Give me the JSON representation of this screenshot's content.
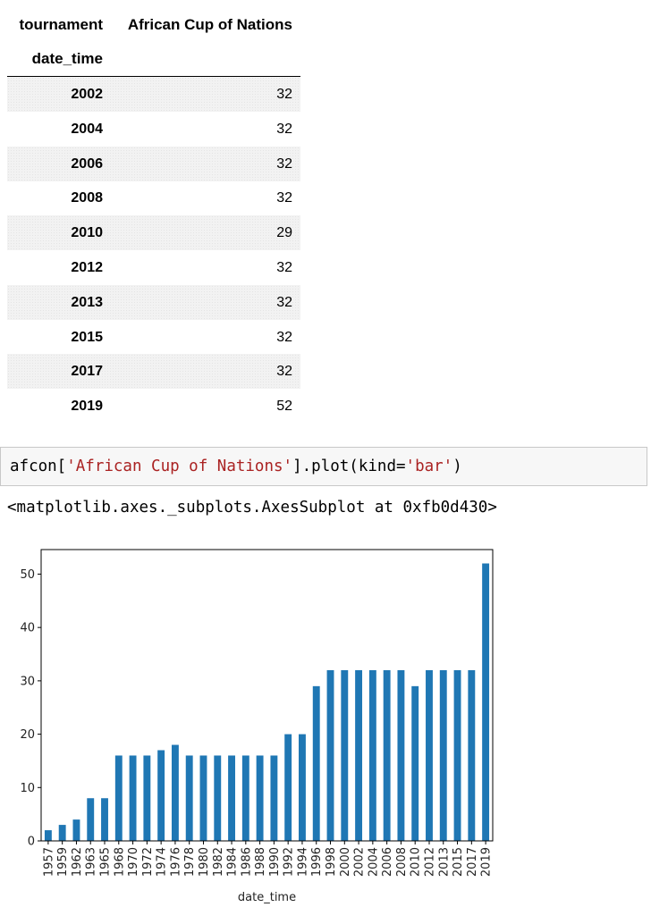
{
  "dataframe": {
    "column_header_label": "tournament",
    "column_name": "African Cup of Nations",
    "index_name": "date_time",
    "rows": [
      {
        "index": "2002",
        "value": "32"
      },
      {
        "index": "2004",
        "value": "32"
      },
      {
        "index": "2006",
        "value": "32"
      },
      {
        "index": "2008",
        "value": "32"
      },
      {
        "index": "2010",
        "value": "29"
      },
      {
        "index": "2012",
        "value": "32"
      },
      {
        "index": "2013",
        "value": "32"
      },
      {
        "index": "2015",
        "value": "32"
      },
      {
        "index": "2017",
        "value": "32"
      },
      {
        "index": "2019",
        "value": "52"
      }
    ]
  },
  "code_cell": {
    "prefix": "afcon[",
    "string_arg": "'African Cup of Nations'",
    "middle": "].plot(kind=",
    "string_kind": "'bar'",
    "suffix": ")"
  },
  "output_text": "<matplotlib.axes._subplots.AxesSubplot at 0xfb0d430>",
  "chart_data": {
    "type": "bar",
    "xlabel": "date_time",
    "ylabel": "",
    "title": "",
    "ylim": [
      0,
      54.6
    ],
    "yticks": [
      0,
      10,
      20,
      30,
      40,
      50
    ],
    "bar_color": "#1f77b4",
    "grid": false,
    "categories": [
      "1957",
      "1959",
      "1962",
      "1963",
      "1965",
      "1968",
      "1970",
      "1972",
      "1974",
      "1976",
      "1978",
      "1980",
      "1982",
      "1984",
      "1986",
      "1988",
      "1990",
      "1992",
      "1994",
      "1996",
      "1998",
      "2000",
      "2002",
      "2004",
      "2006",
      "2008",
      "2010",
      "2012",
      "2013",
      "2015",
      "2017",
      "2019"
    ],
    "values": [
      2,
      3,
      4,
      8,
      8,
      16,
      16,
      16,
      17,
      18,
      16,
      16,
      16,
      16,
      16,
      16,
      16,
      20,
      20,
      29,
      32,
      32,
      32,
      32,
      32,
      32,
      29,
      32,
      32,
      32,
      32,
      52
    ]
  }
}
